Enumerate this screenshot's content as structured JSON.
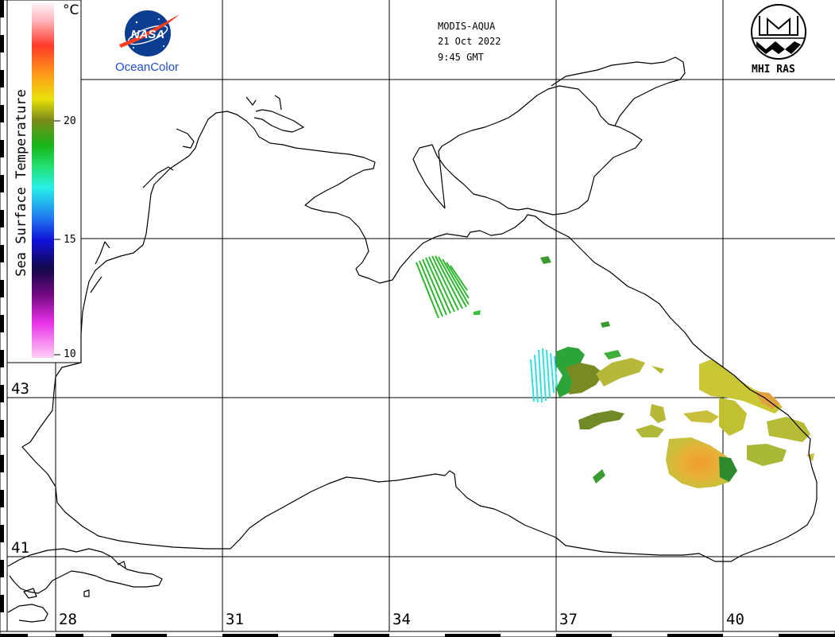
{
  "header": {
    "sensor": "MODIS-AQUA",
    "date": "21 Oct 2022",
    "time": "9:45 GMT"
  },
  "logos": {
    "nasa_text": "NASA",
    "oceancolor": "OceanColor",
    "mhi": "MHI RAS"
  },
  "legend": {
    "title": "Sea Surface Temperature",
    "unit": "°C",
    "labels": [
      "20",
      "15",
      "10"
    ]
  },
  "axes": {
    "longitude_labels": [
      "28",
      "31",
      "34",
      "37",
      "40"
    ],
    "latitude_labels": [
      "43",
      "41"
    ]
  },
  "colors": {
    "grid": "#000000",
    "coast": "#000000",
    "sst_green": "#2fb52f",
    "sst_cyan": "#33e0dc",
    "sst_yellow": "#c8c82a",
    "sst_orange": "#f0a030",
    "nasa_blue": "#0b3d91",
    "nasa_red": "#fc3d21"
  }
}
